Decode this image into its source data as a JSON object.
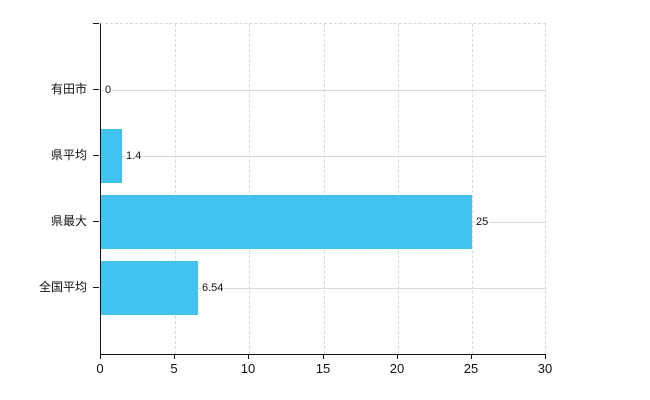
{
  "chart_data": {
    "type": "bar",
    "orientation": "horizontal",
    "title": "",
    "xlabel": "",
    "ylabel": "",
    "categories": [
      "有田市",
      "県平均",
      "県最大",
      "全国平均"
    ],
    "values": [
      0,
      1.4,
      25,
      6.54
    ],
    "value_labels": [
      "0",
      "1.4",
      "25",
      "6.54"
    ],
    "xlim": [
      0,
      30
    ],
    "x_ticks": [
      0,
      5,
      10,
      15,
      20,
      25,
      30
    ],
    "grid": true,
    "legend": false,
    "colors": {
      "bar": "#42c3ef",
      "grid": "#d9d9d9",
      "axis": "#111111",
      "text": "#111111",
      "background": "#ffffff"
    }
  }
}
